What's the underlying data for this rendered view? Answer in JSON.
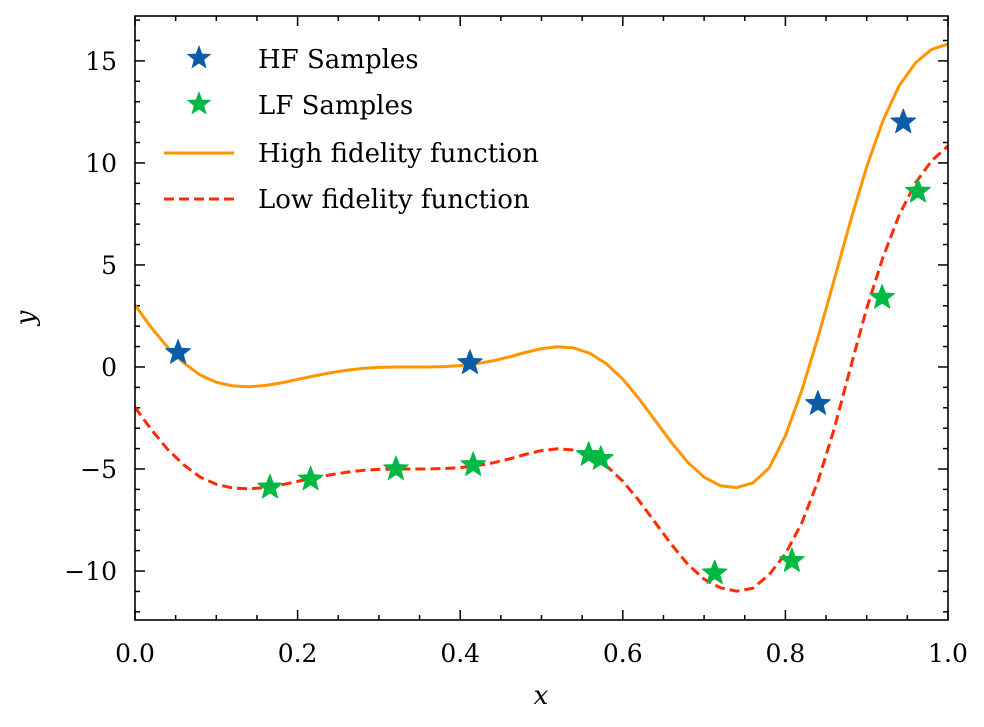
{
  "chart_data": {
    "type": "line",
    "xlabel": "x",
    "ylabel": "y",
    "xlim": [
      0.0,
      1.0
    ],
    "ylim": [
      -12.4,
      17.2
    ],
    "xticks": [
      0.0,
      0.2,
      0.4,
      0.6,
      0.8,
      1.0
    ],
    "xtick_labels": [
      "0.0",
      "0.2",
      "0.4",
      "0.6",
      "0.8",
      "1.0"
    ],
    "yticks": [
      -10,
      -5,
      0,
      5,
      10,
      15
    ],
    "ytick_labels": [
      "−10",
      "−5",
      "0",
      "5",
      "10",
      "15"
    ],
    "grid": false,
    "legend_position": "top-left",
    "series": [
      {
        "name": "HF Samples",
        "kind": "scatter",
        "marker": "star",
        "color": "#0C5DA5",
        "x": [
          0.053,
          0.412,
          0.84,
          0.945
        ],
        "y": [
          0.7,
          0.2,
          -1.8,
          12.0
        ]
      },
      {
        "name": "LF Samples",
        "kind": "scatter",
        "marker": "star",
        "color": "#00B945",
        "x": [
          0.166,
          0.216,
          0.321,
          0.416,
          0.558,
          0.573,
          0.713,
          0.808,
          0.919,
          0.963
        ],
        "y": [
          -5.9,
          -5.5,
          -5.0,
          -4.8,
          -4.3,
          -4.5,
          -10.1,
          -9.5,
          3.4,
          8.6
        ]
      },
      {
        "name": "High fidelity function",
        "kind": "line",
        "line_style": "solid",
        "color": "#FF9500",
        "x": [
          0.0,
          0.02,
          0.04,
          0.06,
          0.08,
          0.1,
          0.12,
          0.14,
          0.16,
          0.18,
          0.2,
          0.22,
          0.24,
          0.26,
          0.28,
          0.3,
          0.32,
          0.34,
          0.36,
          0.38,
          0.4,
          0.42,
          0.44,
          0.46,
          0.48,
          0.5,
          0.52,
          0.54,
          0.56,
          0.58,
          0.6,
          0.62,
          0.64,
          0.66,
          0.68,
          0.7,
          0.72,
          0.74,
          0.76,
          0.78,
          0.8,
          0.82,
          0.84,
          0.86,
          0.88,
          0.9,
          0.92,
          0.94,
          0.96,
          0.98,
          1.0
        ],
        "y": [
          3.03,
          1.93,
          0.97,
          0.2,
          -0.39,
          -0.75,
          -0.93,
          -0.97,
          -0.91,
          -0.78,
          -0.61,
          -0.44,
          -0.29,
          -0.16,
          -0.07,
          -0.02,
          -0.0,
          -0.0,
          -0.0,
          0.02,
          0.07,
          0.16,
          0.3,
          0.49,
          0.71,
          0.9,
          0.99,
          0.93,
          0.66,
          0.15,
          -0.6,
          -1.56,
          -2.63,
          -3.71,
          -4.67,
          -5.4,
          -5.82,
          -5.91,
          -5.68,
          -4.95,
          -3.37,
          -1.17,
          1.44,
          4.27,
          7.14,
          9.81,
          12.08,
          13.79,
          14.9,
          15.57,
          15.83
        ]
      },
      {
        "name": "Low fidelity function",
        "kind": "line",
        "line_style": "dashed",
        "color": "#FF2C00",
        "x": [
          0.0,
          0.02,
          0.04,
          0.06,
          0.08,
          0.1,
          0.12,
          0.14,
          0.16,
          0.18,
          0.2,
          0.22,
          0.24,
          0.26,
          0.28,
          0.3,
          0.32,
          0.34,
          0.36,
          0.38,
          0.4,
          0.42,
          0.44,
          0.46,
          0.48,
          0.5,
          0.52,
          0.54,
          0.56,
          0.58,
          0.6,
          0.62,
          0.64,
          0.66,
          0.68,
          0.7,
          0.72,
          0.74,
          0.76,
          0.78,
          0.8,
          0.82,
          0.84,
          0.86,
          0.88,
          0.9,
          0.92,
          0.94,
          0.96,
          0.98,
          1.0
        ],
        "y": [
          -1.97,
          -3.07,
          -4.03,
          -4.8,
          -5.39,
          -5.75,
          -5.93,
          -5.97,
          -5.91,
          -5.78,
          -5.61,
          -5.44,
          -5.29,
          -5.16,
          -5.07,
          -5.02,
          -5.0,
          -5.0,
          -5.0,
          -4.98,
          -4.93,
          -4.84,
          -4.7,
          -4.51,
          -4.29,
          -4.1,
          -4.01,
          -4.07,
          -4.34,
          -4.85,
          -5.6,
          -6.56,
          -7.63,
          -8.71,
          -9.67,
          -10.4,
          -10.82,
          -10.99,
          -10.84,
          -10.18,
          -9.16,
          -7.65,
          -5.61,
          -3.03,
          -0.05,
          2.87,
          5.38,
          7.45,
          9.02,
          10.11,
          10.83
        ]
      }
    ]
  }
}
